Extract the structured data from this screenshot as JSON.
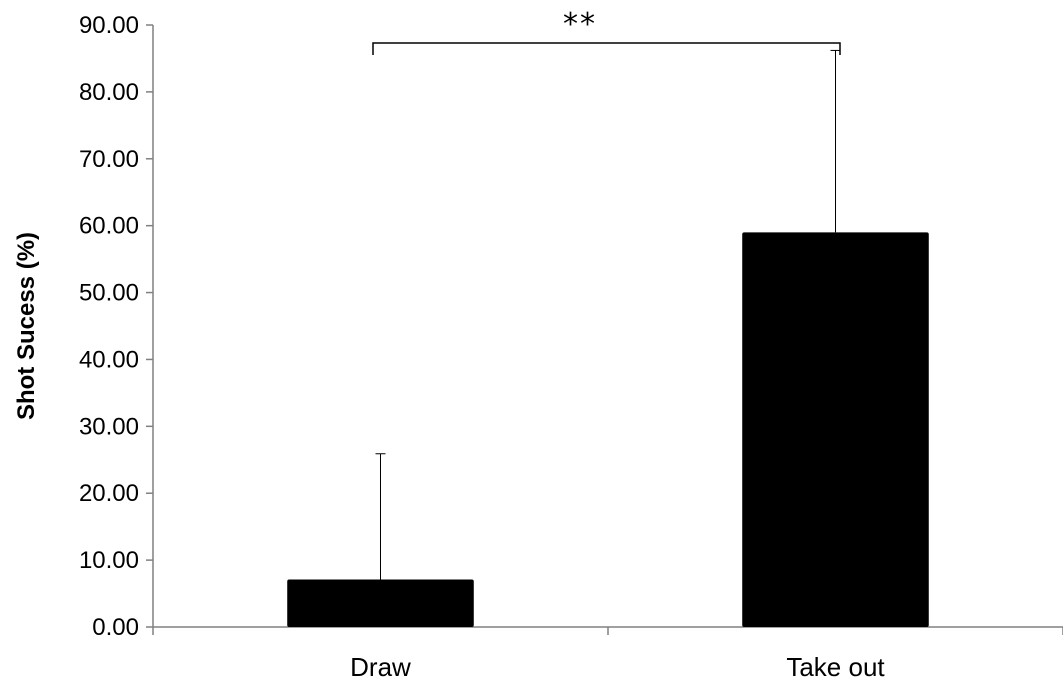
{
  "chart_data": {
    "type": "bar",
    "title": "",
    "xlabel": "",
    "ylabel": "Shot Sucess (%)",
    "categories": [
      "Draw",
      "Take out"
    ],
    "values": [
      7.1,
      59.0
    ],
    "error_bars_upper": [
      18.8,
      27.2
    ],
    "ylim": [
      0,
      90
    ],
    "yticks": [
      "0.00",
      "10.00",
      "20.00",
      "30.00",
      "40.00",
      "50.00",
      "60.00",
      "70.00",
      "80.00",
      "90.00"
    ],
    "grid": false,
    "legend": "none",
    "bar_color": "#000000",
    "significance": {
      "label": "**",
      "between": [
        "Draw",
        "Take out"
      ]
    }
  }
}
